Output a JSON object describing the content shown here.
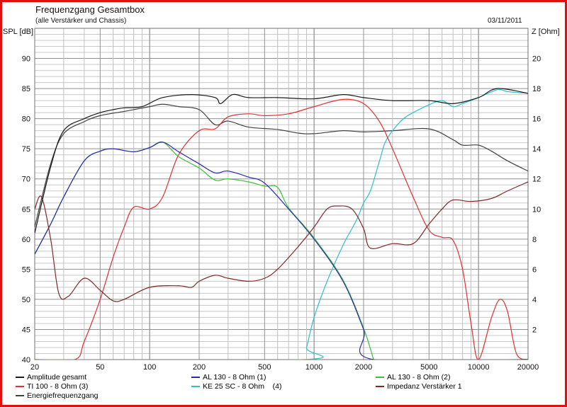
{
  "header": {
    "title": "Frequenzgang Gesamtbox",
    "subtitle": "(alle Verstärker und Chassis)",
    "date": "03/11/2011"
  },
  "chart_data": {
    "type": "line",
    "title": "Frequenzgang Gesamtbox",
    "xlabel": "",
    "ylabel": "SPL [dB]",
    "y2label": "Z [Ohm]",
    "xscale": "log",
    "xlim": [
      20,
      20000
    ],
    "ylim": [
      40,
      95
    ],
    "y2lim": [
      0,
      22
    ],
    "xticks": [
      20,
      50,
      100,
      200,
      500,
      1000,
      2000,
      5000,
      10000,
      20000
    ],
    "yticks": [
      40,
      45,
      50,
      55,
      60,
      65,
      70,
      75,
      80,
      85,
      90
    ],
    "y2ticks": [
      2,
      4,
      6,
      8,
      10,
      12,
      14,
      16,
      18,
      20
    ],
    "grid": true,
    "legend": "bottom",
    "series": [
      {
        "name": "Amplitude gesamt",
        "color": "#1a1a1a",
        "axis": "left",
        "x": [
          20,
          25,
          30,
          40,
          50,
          60,
          70,
          90,
          120,
          180,
          250,
          270,
          320,
          400,
          600,
          1000,
          1500,
          2000,
          3000,
          5000,
          7000,
          10000,
          13000,
          20000
        ],
        "y": [
          61,
          72,
          78,
          80,
          81,
          81.5,
          81.8,
          82,
          83.5,
          84,
          83.5,
          82.5,
          84,
          83.5,
          83.5,
          83.3,
          84,
          83.5,
          83,
          83,
          82.5,
          83.5,
          85,
          84.2
        ]
      },
      {
        "name": "AL 130 - 8 Ohm (1)",
        "color": "#2a2aa8",
        "axis": "left",
        "x": [
          20,
          25,
          30,
          40,
          50,
          60,
          80,
          100,
          120,
          150,
          200,
          250,
          300,
          400,
          500,
          700,
          1000,
          1500,
          2000,
          2300,
          20000
        ],
        "y": [
          57.5,
          62.5,
          67,
          73,
          74.6,
          75,
          74.5,
          75.2,
          76.1,
          74.5,
          72.5,
          71,
          71.3,
          70.3,
          69.3,
          65,
          60,
          53,
          45,
          40,
          40
        ]
      },
      {
        "name": "AL 130 - 8 Ohm (2)",
        "color": "#3cc03c",
        "axis": "left",
        "x": [
          20,
          25,
          30,
          40,
          50,
          60,
          80,
          100,
          120,
          150,
          200,
          250,
          300,
          400,
          500,
          600,
          700,
          1000,
          1500,
          2000,
          2300
        ],
        "y": [
          57.5,
          62.5,
          67,
          73,
          74.6,
          75,
          74.5,
          75.2,
          76.1,
          73.7,
          71.8,
          69.8,
          70,
          69.5,
          68.8,
          68.6,
          65.2,
          60.2,
          53.2,
          45.2,
          40
        ]
      },
      {
        "name": "TI 100 - 8 Ohm (3)",
        "color": "#e03030",
        "axis": "left",
        "x": [
          20,
          35,
          40,
          50,
          60,
          70,
          80,
          100,
          120,
          150,
          200,
          250,
          300,
          400,
          500,
          700,
          1000,
          1500,
          2000,
          2500,
          3000,
          4000,
          5000,
          6000,
          7000,
          8000,
          9000,
          10000,
          12000,
          13500,
          15000,
          17000,
          20000
        ],
        "y": [
          40,
          40,
          43,
          50,
          57,
          62,
          65.3,
          65,
          67,
          74,
          78,
          78.3,
          80.3,
          80.8,
          80.5,
          80.8,
          82,
          83.2,
          82.5,
          79.5,
          75,
          67,
          61.5,
          60.3,
          59.8,
          55,
          46,
          40,
          47,
          50,
          48,
          41,
          40
        ]
      },
      {
        "name": "KE 25 SC - 8 Ohm    (4)",
        "color": "#30c0c8",
        "axis": "left",
        "x": [
          20,
          850,
          900,
          1000,
          1200,
          1500,
          1800,
          2000,
          2200,
          2500,
          2700,
          3000,
          3500,
          4000,
          5000,
          6000,
          7000,
          8000,
          10000,
          13000,
          15000,
          20000
        ],
        "y": [
          40,
          40,
          42,
          47,
          53,
          59,
          63,
          66,
          68,
          73,
          76,
          78,
          80,
          81,
          82.3,
          83,
          82,
          82.5,
          83.5,
          84.8,
          84.5,
          84.2
        ]
      },
      {
        "name": "Impedanz Verstärker 1",
        "color": "#802828",
        "axis": "right",
        "x": [
          20,
          22,
          25,
          28,
          32,
          40,
          50,
          60,
          70,
          100,
          150,
          180,
          200,
          250,
          300,
          400,
          500,
          600,
          800,
          1000,
          1200,
          1400,
          1700,
          2000,
          2200,
          3000,
          4000,
          5000,
          6000,
          7000,
          9000,
          12000,
          15000,
          20000
        ],
        "y": [
          10,
          10.8,
          8,
          4.4,
          4.2,
          5.4,
          4.6,
          3.9,
          4,
          4.8,
          4.9,
          4.8,
          5.2,
          5.6,
          5.4,
          5.2,
          5.4,
          6,
          7.5,
          8.8,
          10,
          10.2,
          10,
          8.7,
          7.4,
          7.7,
          7.7,
          9,
          10,
          10.6,
          10.5,
          10.7,
          11.2,
          11.8
        ]
      },
      {
        "name": "Energiefrequenzgang",
        "color": "#404040",
        "axis": "left",
        "x": [
          20,
          25,
          30,
          40,
          50,
          70,
          100,
          120,
          150,
          200,
          250,
          300,
          400,
          600,
          800,
          1000,
          1500,
          2000,
          3000,
          5000,
          7000,
          8000,
          10000,
          12000,
          15000,
          20000
        ],
        "y": [
          62,
          72.5,
          77.5,
          79.5,
          80.5,
          81.2,
          82,
          82.4,
          82,
          81.5,
          79,
          79.6,
          78.6,
          78.2,
          77.6,
          77.5,
          78,
          77.8,
          78,
          78.3,
          76.5,
          75.6,
          75.6,
          74.6,
          73,
          71.3
        ]
      }
    ]
  }
}
